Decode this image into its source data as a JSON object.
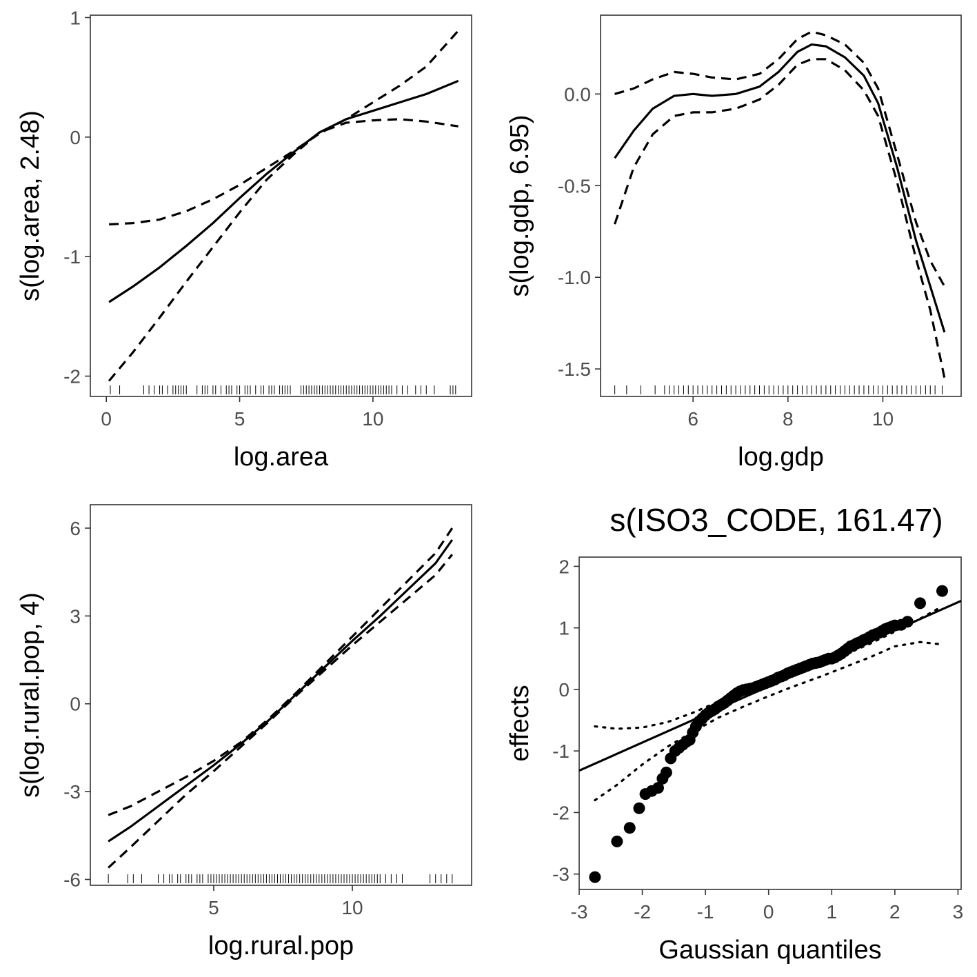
{
  "chart_data": [
    {
      "type": "line",
      "xlabel": "log.area",
      "ylabel": "s(log.area, 2.48)",
      "xlim": [
        -0.6,
        13.7
      ],
      "ylim": [
        -2.17,
        1.02
      ],
      "xticks": [
        0,
        5,
        10
      ],
      "xtick_labels": [
        "0",
        "5",
        "10"
      ],
      "yticks": [
        -2,
        -1,
        0,
        1
      ],
      "ytick_labels": [
        "-2",
        "-1",
        "0",
        "1"
      ],
      "grid": false,
      "x": [
        0.1,
        1,
        2,
        3,
        4,
        5,
        6,
        7,
        8,
        9,
        10,
        11,
        12,
        13.2
      ],
      "series": [
        {
          "role": "fit",
          "style": "solid",
          "values": [
            -1.38,
            -1.25,
            -1.09,
            -0.91,
            -0.72,
            -0.51,
            -0.31,
            -0.13,
            0.04,
            0.15,
            0.22,
            0.29,
            0.36,
            0.47
          ]
        },
        {
          "role": "upper",
          "style": "dashed",
          "values": [
            -0.73,
            -0.72,
            -0.69,
            -0.62,
            -0.52,
            -0.4,
            -0.26,
            -0.12,
            0.03,
            0.15,
            0.29,
            0.43,
            0.59,
            0.89
          ]
        },
        {
          "role": "lower",
          "style": "dashed",
          "values": [
            -2.04,
            -1.8,
            -1.51,
            -1.21,
            -0.92,
            -0.63,
            -0.36,
            -0.15,
            0.04,
            0.12,
            0.14,
            0.15,
            0.13,
            0.09
          ]
        }
      ],
      "rug": [
        0.15,
        0.5,
        1.4,
        1.6,
        1.8,
        2.0,
        2.1,
        2.3,
        2.5,
        2.6,
        2.7,
        2.8,
        2.9,
        3.0,
        3.4,
        3.6,
        3.7,
        3.8,
        4.0,
        4.1,
        4.3,
        4.5,
        4.6,
        4.7,
        4.9,
        5.0,
        5.2,
        5.3,
        5.4,
        5.6,
        5.8,
        5.9,
        6.1,
        6.2,
        6.3,
        6.5,
        6.6,
        6.7,
        6.8,
        6.9,
        7.3,
        7.4,
        7.5,
        7.6,
        7.7,
        7.8,
        7.9,
        8.0,
        8.1,
        8.2,
        8.3,
        8.4,
        8.5,
        8.6,
        8.7,
        8.8,
        8.9,
        9.0,
        9.1,
        9.2,
        9.3,
        9.4,
        9.5,
        9.6,
        9.7,
        9.8,
        9.9,
        10.0,
        10.1,
        10.2,
        10.3,
        10.4,
        10.5,
        10.6,
        10.7,
        10.9,
        11.1,
        11.3,
        11.6,
        11.8,
        12.0,
        12.3,
        12.9,
        13.0,
        13.1
      ]
    },
    {
      "type": "line",
      "xlabel": "log.gdp",
      "ylabel": "s(log.gdp, 6.95)",
      "xlim": [
        4.05,
        11.65
      ],
      "ylim": [
        -1.65,
        0.43
      ],
      "xticks": [
        6,
        8,
        10
      ],
      "xtick_labels": [
        "6",
        "8",
        "10"
      ],
      "yticks": [
        -1.5,
        -1.0,
        -0.5,
        0.0
      ],
      "ytick_labels": [
        "-1.5",
        "-1.0",
        "-0.5",
        "0.0"
      ],
      "grid": false,
      "x": [
        4.35,
        4.75,
        5.15,
        5.6,
        6.0,
        6.4,
        6.9,
        7.4,
        7.8,
        8.2,
        8.5,
        8.8,
        9.2,
        9.6,
        9.9,
        10.3,
        10.7,
        11.0,
        11.3
      ],
      "series": [
        {
          "role": "fit",
          "style": "solid",
          "values": [
            -0.35,
            -0.2,
            -0.08,
            -0.01,
            0.0,
            -0.01,
            0.0,
            0.04,
            0.12,
            0.23,
            0.27,
            0.26,
            0.2,
            0.1,
            -0.05,
            -0.4,
            -0.8,
            -1.05,
            -1.3
          ]
        },
        {
          "role": "upper",
          "style": "dashed",
          "values": [
            0.0,
            0.03,
            0.08,
            0.12,
            0.11,
            0.09,
            0.08,
            0.11,
            0.19,
            0.3,
            0.34,
            0.32,
            0.27,
            0.17,
            0.03,
            -0.33,
            -0.7,
            -0.91,
            -1.05
          ]
        },
        {
          "role": "lower",
          "style": "dashed",
          "values": [
            -0.71,
            -0.4,
            -0.22,
            -0.12,
            -0.1,
            -0.1,
            -0.08,
            -0.03,
            0.05,
            0.16,
            0.19,
            0.19,
            0.13,
            0.02,
            -0.12,
            -0.48,
            -0.9,
            -1.18,
            -1.55
          ]
        }
      ],
      "rug": [
        4.35,
        4.6,
        4.9,
        5.2,
        5.4,
        5.5,
        5.6,
        5.7,
        5.8,
        5.9,
        6.0,
        6.1,
        6.2,
        6.3,
        6.4,
        6.5,
        6.6,
        6.7,
        6.8,
        6.9,
        7.0,
        7.1,
        7.2,
        7.3,
        7.4,
        7.5,
        7.6,
        7.7,
        7.8,
        7.9,
        8.0,
        8.1,
        8.2,
        8.3,
        8.4,
        8.5,
        8.6,
        8.7,
        8.8,
        8.9,
        9.0,
        9.1,
        9.2,
        9.3,
        9.4,
        9.5,
        9.6,
        9.7,
        9.8,
        9.9,
        10.0,
        10.1,
        10.2,
        10.3,
        10.4,
        10.5,
        10.6,
        10.7,
        10.8,
        10.9,
        11.0,
        11.1,
        11.25
      ]
    },
    {
      "type": "line",
      "xlabel": "log.rural.pop",
      "ylabel": "s(log.rural.pop, 4)",
      "xlim": [
        0.55,
        14.3
      ],
      "ylim": [
        -6.2,
        6.8
      ],
      "xticks": [
        5,
        10
      ],
      "xtick_labels": [
        "5",
        "10"
      ],
      "yticks": [
        -6,
        -3,
        0,
        3,
        6
      ],
      "ytick_labels": [
        "-6",
        "-3",
        "0",
        "3",
        "6"
      ],
      "grid": false,
      "x": [
        1.2,
        2,
        3,
        4,
        5,
        6,
        7,
        8,
        9,
        10,
        11,
        12,
        13,
        13.6
      ],
      "series": [
        {
          "role": "fit",
          "style": "solid",
          "values": [
            -4.7,
            -4.2,
            -3.5,
            -2.8,
            -2.1,
            -1.35,
            -0.55,
            0.35,
            1.25,
            2.15,
            3.0,
            3.9,
            4.8,
            5.6
          ]
        },
        {
          "role": "upper",
          "style": "dashed",
          "values": [
            -3.8,
            -3.5,
            -3.0,
            -2.5,
            -1.95,
            -1.3,
            -0.5,
            0.4,
            1.35,
            2.3,
            3.25,
            4.2,
            5.15,
            6.0
          ]
        },
        {
          "role": "lower",
          "style": "dashed",
          "values": [
            -5.6,
            -4.9,
            -4.0,
            -3.1,
            -2.3,
            -1.45,
            -0.6,
            0.3,
            1.15,
            2.0,
            2.8,
            3.6,
            4.4,
            5.1
          ]
        }
      ],
      "rug": [
        1.2,
        1.9,
        2.1,
        2.4,
        3.0,
        3.2,
        3.4,
        3.5,
        3.7,
        3.8,
        4.0,
        4.1,
        4.2,
        4.4,
        4.5,
        4.6,
        4.8,
        4.9,
        5.0,
        5.1,
        5.2,
        5.3,
        5.4,
        5.5,
        5.6,
        5.7,
        5.8,
        5.9,
        6.0,
        6.1,
        6.2,
        6.3,
        6.4,
        6.5,
        6.6,
        6.7,
        6.8,
        6.9,
        7.0,
        7.1,
        7.2,
        7.3,
        7.4,
        7.5,
        7.6,
        7.7,
        7.8,
        7.9,
        8.0,
        8.1,
        8.2,
        8.3,
        8.4,
        8.5,
        8.6,
        8.7,
        8.8,
        8.9,
        9.0,
        9.1,
        9.2,
        9.3,
        9.4,
        9.5,
        9.6,
        9.7,
        9.8,
        9.9,
        10.0,
        10.1,
        10.2,
        10.3,
        10.4,
        10.5,
        10.6,
        10.7,
        10.8,
        10.9,
        11.0,
        11.2,
        11.4,
        11.6,
        11.8,
        12.8,
        13.0,
        13.2,
        13.4,
        13.6
      ]
    },
    {
      "type": "scatter",
      "title": "s(ISO3_CODE, 161.47)",
      "xlabel": "Gaussian quantiles",
      "ylabel": "effects",
      "xlim": [
        -3.0,
        3.05
      ],
      "ylim": [
        -3.25,
        2.15
      ],
      "xticks": [
        -3,
        -2,
        -1,
        0,
        1,
        2,
        3
      ],
      "xtick_labels": [
        "-3",
        "-2",
        "-1",
        "0",
        "1",
        "2",
        "3"
      ],
      "yticks": [
        -3,
        -2,
        -1,
        0,
        1,
        2
      ],
      "ytick_labels": [
        "-3",
        "-2",
        "-1",
        "0",
        "1",
        "2"
      ],
      "grid": false,
      "points": {
        "x": [
          -2.75,
          -2.4,
          -2.2,
          -2.05,
          -1.95,
          -1.85,
          -1.75,
          -1.68,
          -1.62,
          -1.55,
          -1.48,
          -1.42,
          -1.36,
          -1.3,
          -1.25,
          -1.2,
          -1.15,
          -1.1,
          -1.05,
          -1.0,
          -0.95,
          -0.9,
          -0.85,
          -0.8,
          -0.75,
          -0.7,
          -0.65,
          -0.6,
          -0.55,
          -0.5,
          -0.45,
          -0.4,
          -0.35,
          -0.3,
          -0.25,
          -0.2,
          -0.15,
          -0.1,
          -0.05,
          0.0,
          0.05,
          0.1,
          0.15,
          0.2,
          0.25,
          0.3,
          0.35,
          0.4,
          0.45,
          0.5,
          0.55,
          0.6,
          0.65,
          0.7,
          0.75,
          0.8,
          0.85,
          0.9,
          0.95,
          1.0,
          1.05,
          1.1,
          1.15,
          1.2,
          1.25,
          1.3,
          1.35,
          1.4,
          1.45,
          1.5,
          1.55,
          1.6,
          1.65,
          1.7,
          1.75,
          1.8,
          1.85,
          1.9,
          1.95,
          2.0,
          2.1,
          2.2,
          2.4,
          2.75
        ],
        "y": [
          -3.05,
          -2.47,
          -2.25,
          -1.93,
          -1.7,
          -1.65,
          -1.6,
          -1.45,
          -1.35,
          -1.12,
          -1.0,
          -0.95,
          -0.9,
          -0.85,
          -0.82,
          -0.7,
          -0.6,
          -0.52,
          -0.47,
          -0.42,
          -0.38,
          -0.35,
          -0.32,
          -0.28,
          -0.25,
          -0.22,
          -0.18,
          -0.14,
          -0.1,
          -0.06,
          -0.03,
          -0.01,
          0.0,
          0.01,
          0.02,
          0.04,
          0.06,
          0.08,
          0.1,
          0.12,
          0.14,
          0.16,
          0.19,
          0.21,
          0.23,
          0.26,
          0.28,
          0.3,
          0.32,
          0.34,
          0.36,
          0.38,
          0.4,
          0.42,
          0.43,
          0.44,
          0.46,
          0.48,
          0.5,
          0.5,
          0.52,
          0.55,
          0.58,
          0.62,
          0.66,
          0.7,
          0.72,
          0.75,
          0.77,
          0.8,
          0.82,
          0.85,
          0.88,
          0.9,
          0.92,
          0.95,
          0.98,
          1.0,
          1.02,
          1.04,
          1.05,
          1.1,
          1.4,
          1.6
        ]
      },
      "reference_line": {
        "x": [
          -3.0,
          3.05
        ],
        "y": [
          -1.32,
          1.44
        ]
      },
      "envelope": {
        "x": [
          -2.75,
          -2.4,
          -2.0,
          -1.6,
          -1.2,
          -0.8,
          -0.4,
          0.0,
          0.4,
          0.8,
          1.2,
          1.6,
          2.0,
          2.4,
          2.75
        ],
        "upper": [
          -0.6,
          -0.64,
          -0.62,
          -0.53,
          -0.38,
          -0.2,
          -0.05,
          0.07,
          0.22,
          0.38,
          0.56,
          0.74,
          0.94,
          1.15,
          1.35
        ],
        "lower": [
          -1.8,
          -1.55,
          -1.22,
          -0.93,
          -0.69,
          -0.46,
          -0.28,
          -0.11,
          0.05,
          0.2,
          0.36,
          0.52,
          0.7,
          0.77,
          0.73
        ]
      }
    }
  ]
}
